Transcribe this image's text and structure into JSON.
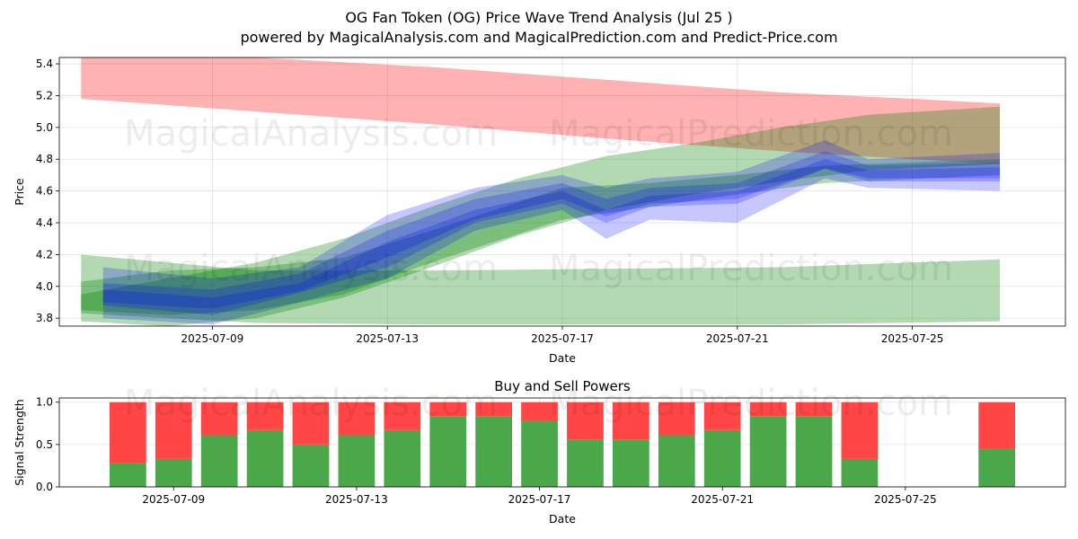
{
  "header": {
    "title": "OG Fan Token (OG) Price Wave Trend Analysis (Jul 25 )",
    "subtitle": "powered by MagicalAnalysis.com and MagicalPrediction.com and Predict-Price.com"
  },
  "watermarks": [
    "MagicalAnalysis.com",
    "MagicalPrediction.com"
  ],
  "colors": {
    "red_band": "#ff0000",
    "green_band": "#008000",
    "blue_band": "#0000ff",
    "buy": "#4aa84a",
    "sell": "#ff4545"
  },
  "chart_data": [
    {
      "type": "area",
      "xlabel": "Date",
      "ylabel": "Price",
      "x_range": [
        "2025-07-05T12:00",
        "2025-07-28T12:00"
      ],
      "ylim": [
        3.75,
        5.44
      ],
      "yticks": [
        3.8,
        4.0,
        4.2,
        4.4,
        4.6,
        4.8,
        5.0,
        5.2,
        5.4
      ],
      "xticks": [
        "2025-07-09",
        "2025-07-13",
        "2025-07-17",
        "2025-07-21",
        "2025-07-25"
      ],
      "grid": true,
      "bands": [
        {
          "color": "red",
          "x": [
            "2025-07-06",
            "2025-07-10",
            "2025-07-14",
            "2025-07-18",
            "2025-07-22",
            "2025-07-25",
            "2025-07-27"
          ],
          "upper": [
            5.48,
            5.44,
            5.38,
            5.3,
            5.22,
            5.18,
            5.15
          ],
          "lower": [
            5.18,
            5.1,
            5.02,
            4.93,
            4.85,
            4.8,
            4.77
          ]
        },
        {
          "color": "green",
          "x": [
            "2025-07-06",
            "2025-07-08",
            "2025-07-10",
            "2025-07-12",
            "2025-07-14",
            "2025-07-16",
            "2025-07-18",
            "2025-07-20",
            "2025-07-22",
            "2025-07-24",
            "2025-07-27"
          ],
          "upper": [
            3.95,
            4.05,
            4.15,
            4.3,
            4.5,
            4.68,
            4.82,
            4.9,
            5.0,
            5.08,
            5.13
          ],
          "lower": [
            3.78,
            3.75,
            3.8,
            3.93,
            4.12,
            4.32,
            4.48,
            4.58,
            4.66,
            4.73,
            4.77
          ]
        },
        {
          "color": "green",
          "x": [
            "2025-07-06",
            "2025-07-10",
            "2025-07-14",
            "2025-07-18",
            "2025-07-22",
            "2025-07-27"
          ],
          "upper": [
            4.2,
            4.1,
            4.1,
            4.11,
            4.12,
            4.17
          ],
          "lower": [
            3.83,
            3.77,
            3.76,
            3.76,
            3.76,
            3.78
          ]
        },
        {
          "color": "green",
          "x": [
            "2025-07-06",
            "2025-07-08",
            "2025-07-10",
            "2025-07-12",
            "2025-07-14",
            "2025-07-17",
            "2025-07-19",
            "2025-07-21",
            "2025-07-23",
            "2025-07-27"
          ],
          "upper": [
            4.03,
            4.1,
            4.12,
            4.18,
            4.35,
            4.62,
            4.65,
            4.7,
            4.76,
            4.8
          ],
          "lower": [
            3.85,
            3.82,
            3.85,
            3.95,
            4.15,
            4.42,
            4.5,
            4.58,
            4.65,
            4.7
          ]
        },
        {
          "color": "blue",
          "x": [
            "2025-07-06.5",
            "2025-07-09",
            "2025-07-11",
            "2025-07-13",
            "2025-07-15",
            "2025-07-17",
            "2025-07-18",
            "2025-07-19",
            "2025-07-21",
            "2025-07-23",
            "2025-07-24",
            "2025-07-27"
          ],
          "upper": [
            4.12,
            4.05,
            4.12,
            4.45,
            4.62,
            4.7,
            4.62,
            4.68,
            4.72,
            4.92,
            4.8,
            4.84
          ],
          "lower": [
            3.8,
            3.76,
            3.9,
            4.05,
            4.35,
            4.48,
            4.3,
            4.42,
            4.4,
            4.68,
            4.62,
            4.6
          ]
        },
        {
          "color": "blue",
          "x": [
            "2025-07-06.5",
            "2025-07-09",
            "2025-07-11",
            "2025-07-13",
            "2025-07-15",
            "2025-07-17",
            "2025-07-18",
            "2025-07-19",
            "2025-07-21",
            "2025-07-23",
            "2025-07-24",
            "2025-07-27"
          ],
          "upper": [
            4.02,
            3.98,
            4.08,
            4.35,
            4.55,
            4.65,
            4.55,
            4.62,
            4.65,
            4.85,
            4.76,
            4.78
          ],
          "lower": [
            3.88,
            3.82,
            3.96,
            4.12,
            4.4,
            4.52,
            4.4,
            4.5,
            4.52,
            4.74,
            4.66,
            4.66
          ]
        },
        {
          "color": "blue",
          "x": [
            "2025-07-06.5",
            "2025-07-09",
            "2025-07-11",
            "2025-07-13",
            "2025-07-15",
            "2025-07-17",
            "2025-07-18",
            "2025-07-19",
            "2025-07-21",
            "2025-07-23",
            "2025-07-24",
            "2025-07-27"
          ],
          "upper": [
            3.98,
            3.93,
            4.02,
            4.28,
            4.48,
            4.6,
            4.48,
            4.57,
            4.6,
            4.8,
            4.73,
            4.75
          ],
          "lower": [
            3.9,
            3.86,
            3.97,
            4.18,
            4.42,
            4.55,
            4.44,
            4.52,
            4.55,
            4.74,
            4.68,
            4.68
          ]
        }
      ]
    },
    {
      "type": "bar",
      "title": "Buy and Sell Powers",
      "xlabel": "Date",
      "ylabel": "Signal Strength",
      "ylim": [
        0,
        1.05
      ],
      "yticks": [
        0.0,
        0.5,
        1.0
      ],
      "xticks": [
        "2025-07-09",
        "2025-07-13",
        "2025-07-17",
        "2025-07-21",
        "2025-07-25"
      ],
      "x_range": [
        "2025-07-06T12:00",
        "2025-07-28T12:00"
      ],
      "grid": true,
      "categories": [
        "2025-07-08",
        "2025-07-09",
        "2025-07-10",
        "2025-07-11",
        "2025-07-12",
        "2025-07-13",
        "2025-07-14",
        "2025-07-15",
        "2025-07-16",
        "2025-07-17",
        "2025-07-18",
        "2025-07-19",
        "2025-07-20",
        "2025-07-21",
        "2025-07-22",
        "2025-07-23",
        "2025-07-24",
        "2025-07-27"
      ],
      "series": [
        {
          "values": [
            0.28,
            0.33,
            0.61,
            0.67,
            0.5,
            0.61,
            0.67,
            0.83,
            0.83,
            0.78,
            0.56,
            0.56,
            0.61,
            0.67,
            0.83,
            0.83,
            0.33,
            0.45
          ]
        },
        {
          "values": [
            0.72,
            0.67,
            0.39,
            0.33,
            0.5,
            0.39,
            0.33,
            0.17,
            0.17,
            0.22,
            0.44,
            0.44,
            0.39,
            0.33,
            0.17,
            0.17,
            0.67,
            0.55
          ]
        }
      ]
    }
  ]
}
